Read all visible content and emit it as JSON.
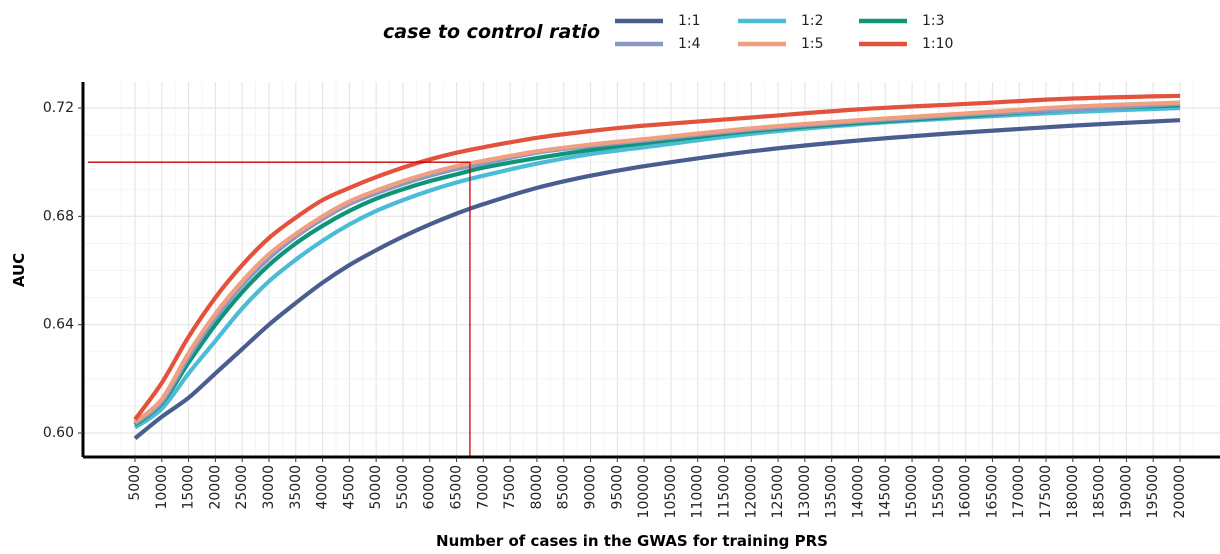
{
  "chart_data": {
    "type": "line",
    "xlabel": "Number of cases in the GWAS for training PRS",
    "ylabel": "AUC",
    "legend_title": "case to control ratio",
    "legend_position": "top",
    "grid": true,
    "xlim": [
      5000,
      200000
    ],
    "ylim": [
      0.59,
      0.724
    ],
    "y_ticks": [
      "0.60",
      "0.64",
      "0.68",
      "0.72"
    ],
    "x_ticks": [
      "5000",
      "10000",
      "15000",
      "20000",
      "25000",
      "30000",
      "35000",
      "40000",
      "45000",
      "50000",
      "55000",
      "60000",
      "65000",
      "70000",
      "75000",
      "80000",
      "85000",
      "90000",
      "95000",
      "100000",
      "105000",
      "110000",
      "115000",
      "120000",
      "125000",
      "130000",
      "135000",
      "140000",
      "145000",
      "150000",
      "155000",
      "160000",
      "165000",
      "170000",
      "175000",
      "180000",
      "185000",
      "190000",
      "195000",
      "200000"
    ],
    "reference_lines": {
      "x": 67500,
      "y": 0.7,
      "color": "#cc0000"
    },
    "x": [
      5000,
      10000,
      15000,
      20000,
      25000,
      30000,
      35000,
      40000,
      45000,
      50000,
      55000,
      60000,
      65000,
      70000,
      80000,
      90000,
      100000,
      120000,
      140000,
      160000,
      180000,
      200000
    ],
    "series": [
      {
        "name": "1:1",
        "color": "#4a5d8f",
        "values": [
          0.598,
          0.606,
          0.613,
          0.622,
          0.631,
          0.64,
          0.648,
          0.6555,
          0.662,
          0.6675,
          0.6725,
          0.677,
          0.681,
          0.6845,
          0.6905,
          0.695,
          0.6985,
          0.704,
          0.708,
          0.711,
          0.7135,
          0.7155
        ]
      },
      {
        "name": "1:2",
        "color": "#4bbcd6",
        "values": [
          0.602,
          0.609,
          0.622,
          0.634,
          0.646,
          0.656,
          0.664,
          0.671,
          0.677,
          0.682,
          0.686,
          0.6895,
          0.6925,
          0.695,
          0.6995,
          0.703,
          0.7055,
          0.7105,
          0.714,
          0.7165,
          0.7185,
          0.72
        ]
      },
      {
        "name": "1:3",
        "color": "#0f9478",
        "values": [
          0.603,
          0.611,
          0.626,
          0.64,
          0.652,
          0.662,
          0.67,
          0.6765,
          0.682,
          0.6865,
          0.69,
          0.693,
          0.6955,
          0.698,
          0.7015,
          0.7045,
          0.707,
          0.7115,
          0.7145,
          0.717,
          0.7195,
          0.721
        ]
      },
      {
        "name": "1:4",
        "color": "#8b97c4",
        "values": [
          0.6035,
          0.6115,
          0.628,
          0.6425,
          0.6545,
          0.6645,
          0.6725,
          0.679,
          0.6845,
          0.6885,
          0.692,
          0.695,
          0.6975,
          0.6995,
          0.7035,
          0.706,
          0.708,
          0.712,
          0.715,
          0.7175,
          0.7195,
          0.7215
        ]
      },
      {
        "name": "1:5",
        "color": "#f0a080",
        "values": [
          0.604,
          0.6125,
          0.6295,
          0.644,
          0.656,
          0.666,
          0.6735,
          0.68,
          0.6855,
          0.6895,
          0.693,
          0.696,
          0.6985,
          0.7005,
          0.704,
          0.7065,
          0.7085,
          0.7125,
          0.7155,
          0.718,
          0.7205,
          0.722
        ]
      },
      {
        "name": "1:10",
        "color": "#e2523d",
        "values": [
          0.605,
          0.6185,
          0.6355,
          0.65,
          0.662,
          0.672,
          0.6795,
          0.686,
          0.6905,
          0.6945,
          0.698,
          0.701,
          0.7035,
          0.7055,
          0.709,
          0.7115,
          0.7135,
          0.7165,
          0.7195,
          0.7215,
          0.7235,
          0.7245
        ]
      }
    ]
  }
}
